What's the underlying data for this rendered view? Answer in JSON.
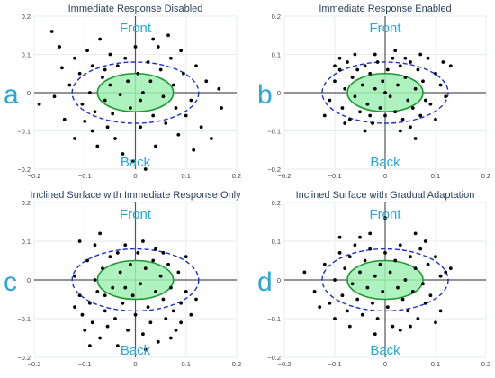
{
  "colors": {
    "zone_text": "#29a8d8",
    "inner_fill": "#9ff0b4",
    "inner_stroke": "#1a9a2c",
    "outer_stroke": "#1b2fd6",
    "points": "#000000",
    "grid": "#e5ecf3",
    "axis_line": "#555555",
    "title_text": "#2a3f5f"
  },
  "chart_data": [
    {
      "type": "scatter",
      "panel_letter": "a",
      "title": "Immediate Response Disabled",
      "front_label": "Front",
      "back_label": "Back",
      "xlim": [
        -0.2,
        0.2
      ],
      "ylim": [
        -0.2,
        0.2
      ],
      "xticks": [
        "−0.2",
        "−0.1",
        "0",
        "0.1",
        "0.2"
      ],
      "yticks": [
        "0.2",
        "0.1",
        "0",
        "−0.1",
        "−0.2"
      ],
      "grid": true,
      "inner_ellipse": {
        "cx": 0,
        "cy": 0,
        "rx": 0.075,
        "ry": 0.05
      },
      "outer_ellipse": {
        "cx": 0,
        "cy": 0,
        "rx": 0.125,
        "ry": 0.08
      },
      "points": [
        [
          -0.165,
          0.16
        ],
        [
          -0.15,
          0.12
        ],
        [
          -0.145,
          0.065
        ],
        [
          -0.13,
          0.02
        ],
        [
          -0.16,
          -0.01
        ],
        [
          -0.19,
          -0.03
        ],
        [
          -0.14,
          -0.07
        ],
        [
          -0.12,
          0.09
        ],
        [
          -0.11,
          0.05
        ],
        [
          -0.105,
          -0.03
        ],
        [
          -0.1,
          -0.075
        ],
        [
          -0.095,
          0.11
        ],
        [
          -0.085,
          0.07
        ],
        [
          -0.09,
          0.0
        ],
        [
          -0.08,
          -0.05
        ],
        [
          -0.085,
          -0.1
        ],
        [
          -0.075,
          -0.14
        ],
        [
          -0.07,
          0.14
        ],
        [
          -0.065,
          0.04
        ],
        [
          -0.06,
          -0.02
        ],
        [
          -0.055,
          -0.09
        ],
        [
          -0.05,
          0.1
        ],
        [
          -0.05,
          0.02
        ],
        [
          -0.045,
          -0.055
        ],
        [
          -0.04,
          -0.12
        ],
        [
          -0.035,
          0.07
        ],
        [
          -0.03,
          -0.005
        ],
        [
          -0.025,
          -0.16
        ],
        [
          -0.02,
          0.09
        ],
        [
          -0.015,
          0.03
        ],
        [
          -0.01,
          -0.04
        ],
        [
          -0.005,
          -0.18
        ],
        [
          0.0,
          0.12
        ],
        [
          0.005,
          0.05
        ],
        [
          0.01,
          -0.02
        ],
        [
          0.01,
          -0.09
        ],
        [
          0.015,
          0.0
        ],
        [
          0.02,
          -0.2
        ],
        [
          0.025,
          0.08
        ],
        [
          0.03,
          0.03
        ],
        [
          0.035,
          -0.06
        ],
        [
          0.04,
          -0.14
        ],
        [
          0.045,
          0.12
        ],
        [
          0.05,
          0.06
        ],
        [
          0.055,
          -0.01
        ],
        [
          0.06,
          -0.08
        ],
        [
          0.065,
          0.15
        ],
        [
          0.07,
          0.09
        ],
        [
          0.075,
          0.02
        ],
        [
          0.08,
          -0.04
        ],
        [
          0.085,
          -0.11
        ],
        [
          0.09,
          0.11
        ],
        [
          0.095,
          0.05
        ],
        [
          0.1,
          -0.06
        ],
        [
          0.11,
          -0.02
        ],
        [
          0.12,
          0.07
        ],
        [
          0.13,
          -0.09
        ],
        [
          0.14,
          0.03
        ],
        [
          0.15,
          -0.12
        ],
        [
          0.165,
          0.01
        ],
        [
          -0.12,
          -0.12
        ],
        [
          0.115,
          -0.15
        ],
        [
          -0.06,
          0.06
        ],
        [
          0.035,
          0.14
        ],
        [
          0.17,
          -0.04
        ]
      ]
    },
    {
      "type": "scatter",
      "panel_letter": "b",
      "title": "Immediate Response Enabled",
      "front_label": "Front",
      "back_label": "Back",
      "xlim": [
        -0.2,
        0.2
      ],
      "ylim": [
        -0.2,
        0.2
      ],
      "xticks": [
        "−0.2",
        "−0.1",
        "0",
        "0.1",
        "0.2"
      ],
      "yticks": [
        "0.2",
        "0.1",
        "0",
        "−0.1",
        "−0.2"
      ],
      "grid": true,
      "inner_ellipse": {
        "cx": 0,
        "cy": 0,
        "rx": 0.075,
        "ry": 0.05
      },
      "outer_ellipse": {
        "cx": 0,
        "cy": 0,
        "rx": 0.125,
        "ry": 0.08
      },
      "points": [
        [
          -0.12,
          -0.06
        ],
        [
          -0.11,
          -0.02
        ],
        [
          -0.1,
          0.03
        ],
        [
          -0.09,
          0.06
        ],
        [
          -0.085,
          -0.04
        ],
        [
          -0.08,
          0.01
        ],
        [
          -0.075,
          0.08
        ],
        [
          -0.07,
          -0.07
        ],
        [
          -0.065,
          0.04
        ],
        [
          -0.06,
          -0.01
        ],
        [
          -0.055,
          0.06
        ],
        [
          -0.05,
          -0.05
        ],
        [
          -0.045,
          0.02
        ],
        [
          -0.04,
          0.07
        ],
        [
          -0.035,
          -0.03
        ],
        [
          -0.03,
          0.05
        ],
        [
          -0.025,
          -0.08
        ],
        [
          -0.02,
          0.01
        ],
        [
          -0.015,
          0.08
        ],
        [
          -0.01,
          -0.04
        ],
        [
          -0.005,
          0.03
        ],
        [
          0.0,
          -0.06
        ],
        [
          0.005,
          0.06
        ],
        [
          0.01,
          -0.01
        ],
        [
          0.015,
          0.09
        ],
        [
          0.02,
          -0.05
        ],
        [
          0.025,
          0.02
        ],
        [
          0.03,
          0.07
        ],
        [
          0.035,
          -0.07
        ],
        [
          0.04,
          0.04
        ],
        [
          0.045,
          -0.02
        ],
        [
          0.05,
          0.08
        ],
        [
          0.055,
          -0.04
        ],
        [
          0.06,
          0.01
        ],
        [
          0.065,
          0.06
        ],
        [
          0.07,
          -0.06
        ],
        [
          0.075,
          0.03
        ],
        [
          0.08,
          -0.02
        ],
        [
          0.085,
          0.09
        ],
        [
          0.09,
          -0.03
        ],
        [
          0.1,
          0.05
        ],
        [
          0.11,
          0.02
        ],
        [
          0.12,
          -0.01
        ],
        [
          0.13,
          0.07
        ],
        [
          0.06,
          -0.12
        ],
        [
          -0.04,
          -0.1
        ],
        [
          0.02,
          0.11
        ],
        [
          -0.09,
          0.09
        ],
        [
          0.03,
          -0.1
        ],
        [
          -0.02,
          0.1
        ],
        [
          0.1,
          -0.07
        ],
        [
          -0.06,
          0.1
        ],
        [
          0.0,
          0.0
        ],
        [
          0.04,
          0.09
        ],
        [
          -0.03,
          -0.06
        ],
        [
          0.07,
          0.1
        ],
        [
          -0.08,
          -0.08
        ],
        [
          0.05,
          -0.09
        ],
        [
          0.115,
          0.08
        ],
        [
          -0.1,
          0.07
        ]
      ]
    },
    {
      "type": "scatter",
      "panel_letter": "c",
      "title": "Inclined Surface with Immediate Response Only",
      "front_label": "Front",
      "back_label": "Back",
      "xlim": [
        -0.2,
        0.2
      ],
      "ylim": [
        -0.2,
        0.2
      ],
      "xticks": [
        "−0.2",
        "−0.1",
        "0",
        "0.1",
        "0.2"
      ],
      "yticks": [
        "0.2",
        "0.1",
        "0",
        "−0.1",
        "−0.2"
      ],
      "grid": true,
      "inner_ellipse": {
        "cx": 0,
        "cy": 0,
        "rx": 0.075,
        "ry": 0.05
      },
      "outer_ellipse": {
        "cx": 0,
        "cy": 0,
        "rx": 0.125,
        "ry": 0.08
      },
      "points": [
        [
          -0.12,
          0.01
        ],
        [
          -0.11,
          -0.04
        ],
        [
          -0.105,
          -0.09
        ],
        [
          -0.1,
          -0.13
        ],
        [
          -0.095,
          0.05
        ],
        [
          -0.09,
          -0.06
        ],
        [
          -0.085,
          -0.11
        ],
        [
          -0.08,
          0.09
        ],
        [
          -0.075,
          -0.03
        ],
        [
          -0.07,
          -0.15
        ],
        [
          -0.065,
          0.03
        ],
        [
          -0.06,
          -0.08
        ],
        [
          -0.055,
          -0.12
        ],
        [
          -0.05,
          0.06
        ],
        [
          -0.045,
          -0.02
        ],
        [
          -0.04,
          -0.1
        ],
        [
          -0.035,
          -0.17
        ],
        [
          -0.03,
          0.02
        ],
        [
          -0.025,
          -0.06
        ],
        [
          -0.02,
          0.09
        ],
        [
          -0.015,
          -0.13
        ],
        [
          -0.01,
          0.04
        ],
        [
          -0.005,
          -0.04
        ],
        [
          0.0,
          -0.09
        ],
        [
          0.005,
          0.07
        ],
        [
          0.01,
          -0.01
        ],
        [
          0.015,
          -0.14
        ],
        [
          0.02,
          0.03
        ],
        [
          0.025,
          -0.07
        ],
        [
          0.03,
          -0.11
        ],
        [
          0.035,
          0.05
        ],
        [
          0.04,
          -0.03
        ],
        [
          0.045,
          -0.16
        ],
        [
          0.05,
          0.01
        ],
        [
          0.055,
          -0.05
        ],
        [
          0.06,
          -0.1
        ],
        [
          0.065,
          0.04
        ],
        [
          0.07,
          -0.02
        ],
        [
          0.075,
          -0.08
        ],
        [
          0.08,
          -0.13
        ],
        [
          0.085,
          0.02
        ],
        [
          0.09,
          -0.06
        ],
        [
          0.1,
          -0.03
        ],
        [
          0.11,
          -0.09
        ],
        [
          0.12,
          -0.05
        ],
        [
          -0.07,
          0.12
        ],
        [
          0.02,
          -0.18
        ],
        [
          -0.11,
          0.1
        ],
        [
          0.1,
          0.06
        ],
        [
          -0.02,
          -0.02
        ],
        [
          0.04,
          0.08
        ],
        [
          -0.06,
          -0.04
        ],
        [
          0.07,
          -0.15
        ],
        [
          -0.09,
          -0.17
        ],
        [
          0.015,
          0.1
        ],
        [
          -0.035,
          0.07
        ],
        [
          0.055,
          0.07
        ],
        [
          -0.08,
          0.0
        ],
        [
          0.09,
          -0.11
        ],
        [
          -0.12,
          -0.07
        ]
      ]
    },
    {
      "type": "scatter",
      "panel_letter": "d",
      "title": "Inclined Surface with Gradual Adaptation",
      "front_label": "Front",
      "back_label": "Back",
      "xlim": [
        -0.2,
        0.2
      ],
      "ylim": [
        -0.2,
        0.2
      ],
      "xticks": [
        "−0.2",
        "−0.1",
        "0",
        "0.1",
        "0.2"
      ],
      "yticks": [
        "0.2",
        "0.1",
        "0",
        "−0.1",
        "−0.2"
      ],
      "grid": true,
      "inner_ellipse": {
        "cx": 0,
        "cy": 0,
        "rx": 0.075,
        "ry": 0.05
      },
      "outer_ellipse": {
        "cx": 0,
        "cy": 0,
        "rx": 0.125,
        "ry": 0.08
      },
      "points": [
        [
          -0.16,
          0.02
        ],
        [
          -0.14,
          -0.03
        ],
        [
          -0.12,
          0.04
        ],
        [
          -0.11,
          -0.06
        ],
        [
          -0.1,
          0.0
        ],
        [
          -0.09,
          0.07
        ],
        [
          -0.085,
          -0.04
        ],
        [
          -0.08,
          0.03
        ],
        [
          -0.075,
          -0.08
        ],
        [
          -0.07,
          0.06
        ],
        [
          -0.065,
          -0.01
        ],
        [
          -0.06,
          0.09
        ],
        [
          -0.055,
          -0.05
        ],
        [
          -0.05,
          0.02
        ],
        [
          -0.045,
          -0.09
        ],
        [
          -0.04,
          0.05
        ],
        [
          -0.035,
          -0.02
        ],
        [
          -0.03,
          0.08
        ],
        [
          -0.025,
          -0.06
        ],
        [
          -0.02,
          0.01
        ],
        [
          -0.015,
          -0.1
        ],
        [
          -0.01,
          0.04
        ],
        [
          -0.005,
          -0.03
        ],
        [
          0.0,
          0.07
        ],
        [
          0.005,
          -0.07
        ],
        [
          0.01,
          0.02
        ],
        [
          0.015,
          -0.12
        ],
        [
          0.02,
          0.05
        ],
        [
          0.025,
          -0.02
        ],
        [
          0.03,
          0.09
        ],
        [
          0.035,
          -0.05
        ],
        [
          0.04,
          0.0
        ],
        [
          0.045,
          -0.08
        ],
        [
          0.05,
          0.06
        ],
        [
          0.055,
          -0.03
        ],
        [
          0.06,
          0.03
        ],
        [
          0.065,
          -0.1
        ],
        [
          0.07,
          0.08
        ],
        [
          0.075,
          -0.01
        ],
        [
          0.08,
          -0.06
        ],
        [
          0.085,
          0.04
        ],
        [
          0.09,
          -0.04
        ],
        [
          0.1,
          0.06
        ],
        [
          0.11,
          -0.08
        ],
        [
          0.12,
          0.02
        ],
        [
          0.13,
          0.03
        ],
        [
          0.0,
          0.16
        ],
        [
          -0.02,
          -0.14
        ],
        [
          0.06,
          0.12
        ],
        [
          -0.09,
          0.11
        ],
        [
          0.1,
          -0.11
        ],
        [
          -0.13,
          -0.07
        ],
        [
          0.03,
          -0.13
        ],
        [
          -0.05,
          0.11
        ],
        [
          0.08,
          0.1
        ],
        [
          -0.07,
          -0.12
        ],
        [
          0.05,
          -0.12
        ],
        [
          -0.1,
          -0.1
        ],
        [
          0.11,
          0.01
        ],
        [
          -0.03,
          0.12
        ]
      ]
    }
  ]
}
